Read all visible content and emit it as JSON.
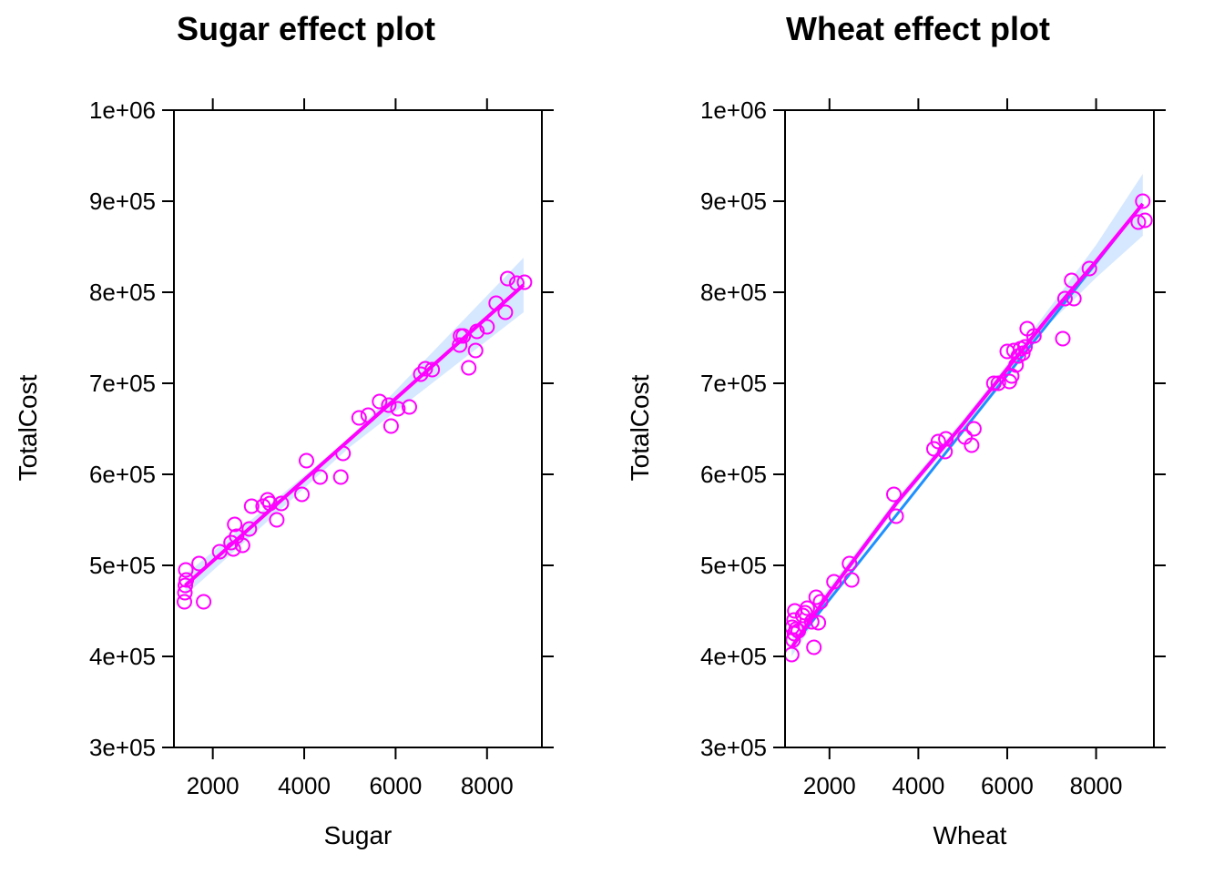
{
  "colors": {
    "points": "#ff00ff",
    "fit_line": "#ff00ff",
    "ref_line": "#1e90ff",
    "band": "#d6e8ff",
    "axes": "#000000"
  },
  "chart_data": [
    {
      "type": "scatter",
      "title": "Sugar effect plot",
      "xlabel": "Sugar",
      "ylabel": "TotalCost",
      "xlim": [
        1150,
        9200
      ],
      "ylim": [
        300000,
        1000000
      ],
      "x_ticks": [
        2000,
        4000,
        6000,
        8000
      ],
      "x_tick_labels": [
        "2000",
        "4000",
        "6000",
        "8000"
      ],
      "y_ticks": [
        300000,
        400000,
        500000,
        600000,
        700000,
        800000,
        900000,
        1000000
      ],
      "y_tick_labels": [
        "3e+05",
        "4e+05",
        "5e+05",
        "6e+05",
        "7e+05",
        "8e+05",
        "9e+05",
        "1e+06"
      ],
      "grid": false,
      "fit": {
        "x": [
          1400,
          8800
        ],
        "y": [
          478000,
          808000
        ]
      },
      "band": {
        "x": [
          1400,
          5000,
          8800
        ],
        "upper": [
          490000,
          640000,
          838000
        ],
        "lower": [
          467000,
          630000,
          778000
        ]
      },
      "points": {
        "x": [
          1380,
          1390,
          1400,
          1410,
          1420,
          1700,
          1800,
          2150,
          2400,
          2450,
          2480,
          2520,
          2650,
          2800,
          2850,
          3100,
          3200,
          3250,
          3400,
          3500,
          3950,
          4050,
          4350,
          4800,
          4850,
          5200,
          5400,
          5650,
          5850,
          5900,
          6050,
          6300,
          6550,
          6650,
          6800,
          7400,
          7420,
          7480,
          7600,
          7750,
          7780,
          8000,
          8200,
          8400,
          8450,
          8650,
          8820
        ],
        "y": [
          460000,
          470000,
          478000,
          495000,
          484000,
          502000,
          460000,
          515000,
          525000,
          518000,
          545000,
          532000,
          522000,
          540000,
          565000,
          565000,
          572000,
          568000,
          550000,
          568000,
          578000,
          615000,
          597000,
          597000,
          623000,
          662000,
          665000,
          680000,
          676000,
          653000,
          672000,
          674000,
          710000,
          716000,
          715000,
          742000,
          752000,
          752000,
          717000,
          736000,
          757000,
          762000,
          788000,
          778000,
          815000,
          810000,
          811000
        ]
      }
    },
    {
      "type": "scatter",
      "title": "Wheat effect plot",
      "xlabel": "Wheat",
      "ylabel": "TotalCost",
      "xlim": [
        1000,
        9300
      ],
      "ylim": [
        300000,
        1000000
      ],
      "x_ticks": [
        2000,
        4000,
        6000,
        8000
      ],
      "x_tick_labels": [
        "2000",
        "4000",
        "6000",
        "8000"
      ],
      "y_ticks": [
        300000,
        400000,
        500000,
        600000,
        700000,
        800000,
        900000,
        1000000
      ],
      "y_tick_labels": [
        "3e+05",
        "4e+05",
        "5e+05",
        "6e+05",
        "7e+05",
        "8e+05",
        "9e+05",
        "1e+06"
      ],
      "grid": false,
      "fit": {
        "x": [
          1150,
          2000,
          3500,
          5000,
          6000,
          7000,
          8000,
          9050
        ],
        "y": [
          410000,
          470000,
          568000,
          655000,
          716000,
          777000,
          834000,
          897000
        ]
      },
      "band": {
        "x": [
          1150,
          2000,
          3500,
          5000,
          6000,
          7000,
          8000,
          9050
        ],
        "upper": [
          420000,
          476000,
          573000,
          660000,
          721000,
          786000,
          852000,
          930000
        ],
        "lower": [
          400000,
          464000,
          563000,
          650000,
          711000,
          768000,
          816000,
          862000
        ]
      },
      "points": {
        "x": [
          1150,
          1160,
          1180,
          1200,
          1210,
          1220,
          1250,
          1300,
          1400,
          1450,
          1500,
          1600,
          1650,
          1700,
          1750,
          1800,
          2100,
          2450,
          2500,
          3450,
          3500,
          4350,
          4450,
          4600,
          4620,
          5050,
          5200,
          5250,
          5700,
          5800,
          6000,
          6050,
          6100,
          6150,
          6200,
          6250,
          6300,
          6350,
          6400,
          6450,
          6600,
          7250,
          7300,
          7450,
          7500,
          7850,
          8950,
          9050,
          9100
        ],
        "y": [
          402000,
          432000,
          418000,
          440000,
          425000,
          450000,
          430000,
          428000,
          445000,
          448000,
          453000,
          438000,
          410000,
          465000,
          437000,
          460000,
          482000,
          502000,
          484000,
          578000,
          554000,
          628000,
          636000,
          625000,
          639000,
          641000,
          632000,
          650000,
          700000,
          700000,
          735000,
          702000,
          708000,
          736000,
          720000,
          730000,
          738000,
          733000,
          740000,
          760000,
          752000,
          749000,
          793000,
          813000,
          793000,
          826000,
          877000,
          900000,
          879000
        ]
      }
    }
  ]
}
